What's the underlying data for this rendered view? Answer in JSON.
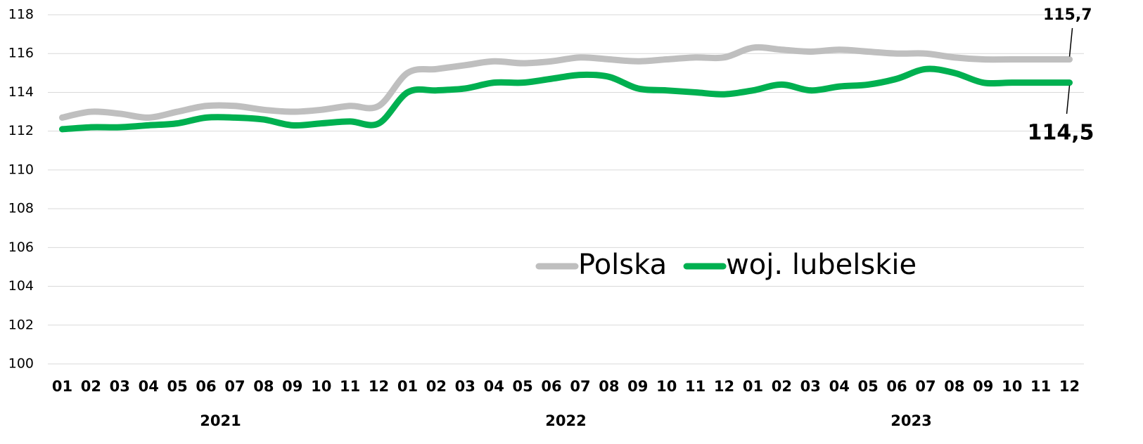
{
  "chart_data": {
    "type": "line",
    "categories": [
      "01",
      "02",
      "03",
      "04",
      "05",
      "06",
      "07",
      "08",
      "09",
      "10",
      "11",
      "12",
      "01",
      "02",
      "03",
      "04",
      "05",
      "06",
      "07",
      "08",
      "09",
      "10",
      "11",
      "12",
      "01",
      "02",
      "03",
      "04",
      "05",
      "06",
      "07",
      "08",
      "09",
      "10",
      "11",
      "12"
    ],
    "year_labels": [
      "2021",
      "2022",
      "2023"
    ],
    "series": [
      {
        "name": "Polska",
        "color": "#bfbfbf",
        "values": [
          112.7,
          113.0,
          112.9,
          112.7,
          113.0,
          113.3,
          113.3,
          113.1,
          113.0,
          113.1,
          113.3,
          113.3,
          115.0,
          115.2,
          115.4,
          115.6,
          115.5,
          115.6,
          115.8,
          115.7,
          115.6,
          115.7,
          115.8,
          115.8,
          116.3,
          116.2,
          116.1,
          116.2,
          116.1,
          116.0,
          116.0,
          115.8,
          115.7,
          115.7,
          115.7,
          115.7
        ],
        "value_labels": [
          null,
          null,
          null,
          null,
          null,
          null,
          null,
          null,
          null,
          null,
          null,
          null,
          null,
          null,
          null,
          null,
          null,
          null,
          null,
          null,
          null,
          null,
          null,
          null,
          null,
          null,
          null,
          null,
          null,
          null,
          null,
          null,
          null,
          null,
          null,
          "115,7"
        ]
      },
      {
        "name": "woj. lubelskie",
        "color": "#00b050",
        "values": [
          112.1,
          112.2,
          112.2,
          112.3,
          112.4,
          112.7,
          112.7,
          112.6,
          112.3,
          112.4,
          112.5,
          112.4,
          114.0,
          114.1,
          114.2,
          114.5,
          114.5,
          114.7,
          114.9,
          114.8,
          114.2,
          114.1,
          114.0,
          113.9,
          114.1,
          114.4,
          114.1,
          114.3,
          114.4,
          114.7,
          115.2,
          115.0,
          114.5,
          114.5,
          114.5,
          114.5
        ],
        "value_labels": [
          null,
          null,
          null,
          null,
          null,
          null,
          null,
          null,
          null,
          null,
          null,
          null,
          null,
          null,
          null,
          null,
          null,
          null,
          null,
          null,
          null,
          null,
          null,
          null,
          null,
          null,
          null,
          null,
          null,
          null,
          null,
          null,
          null,
          null,
          null,
          "114,5"
        ]
      }
    ],
    "ylim": [
      100,
      118
    ],
    "yticks": [
      100,
      102,
      104,
      106,
      108,
      110,
      112,
      114,
      116,
      118
    ],
    "grid": true
  }
}
